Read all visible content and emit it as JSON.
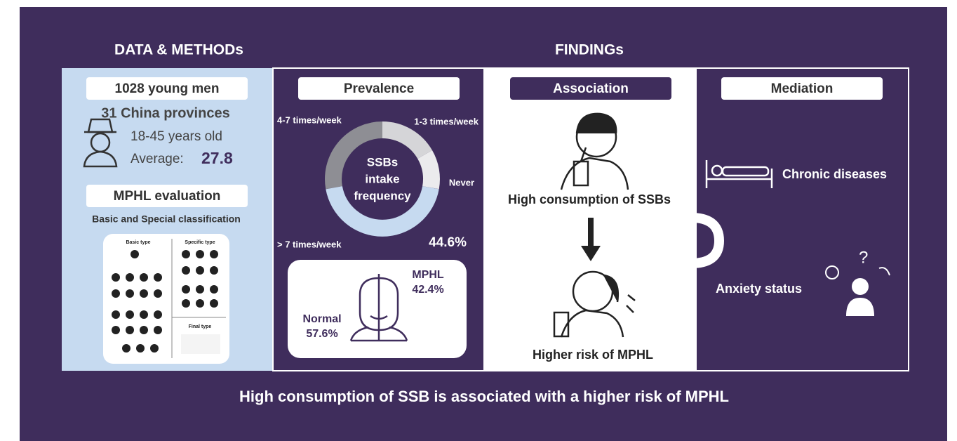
{
  "headers": {
    "data_methods": "DATA & METHODs",
    "findings": "FINDINGs"
  },
  "data_methods": {
    "sample": "1028 young men",
    "provinces": "31 China provinces",
    "age": "18-45 years old",
    "average_label": "Average:",
    "average_value": "27.8",
    "evaluation": "MPHL evaluation",
    "classification": "Basic and Special classification",
    "figure": {
      "basic": "Basic type",
      "specific": "Specific type",
      "final": "Final type"
    }
  },
  "prevalence": {
    "title": "Prevalence",
    "center": [
      "SSBs",
      "intake",
      "frequency"
    ],
    "labels": [
      "4-7 times/week",
      "1-3 times/week",
      "Never",
      "> 7 times/week"
    ],
    "top_share": "44.6%",
    "mphl": "MPHL",
    "mphl_share": "42.4%",
    "normal": "Normal",
    "normal_share": "57.6%"
  },
  "association": {
    "title": "Association",
    "cause": "High consumption of SSBs",
    "effect": "Higher risk of MPHL"
  },
  "mediation": {
    "title": "Mediation",
    "factors": [
      "Chronic diseases",
      "Anxiety status"
    ]
  },
  "conclusion": "High consumption of SSB is associated with a higher risk of MPHL"
}
